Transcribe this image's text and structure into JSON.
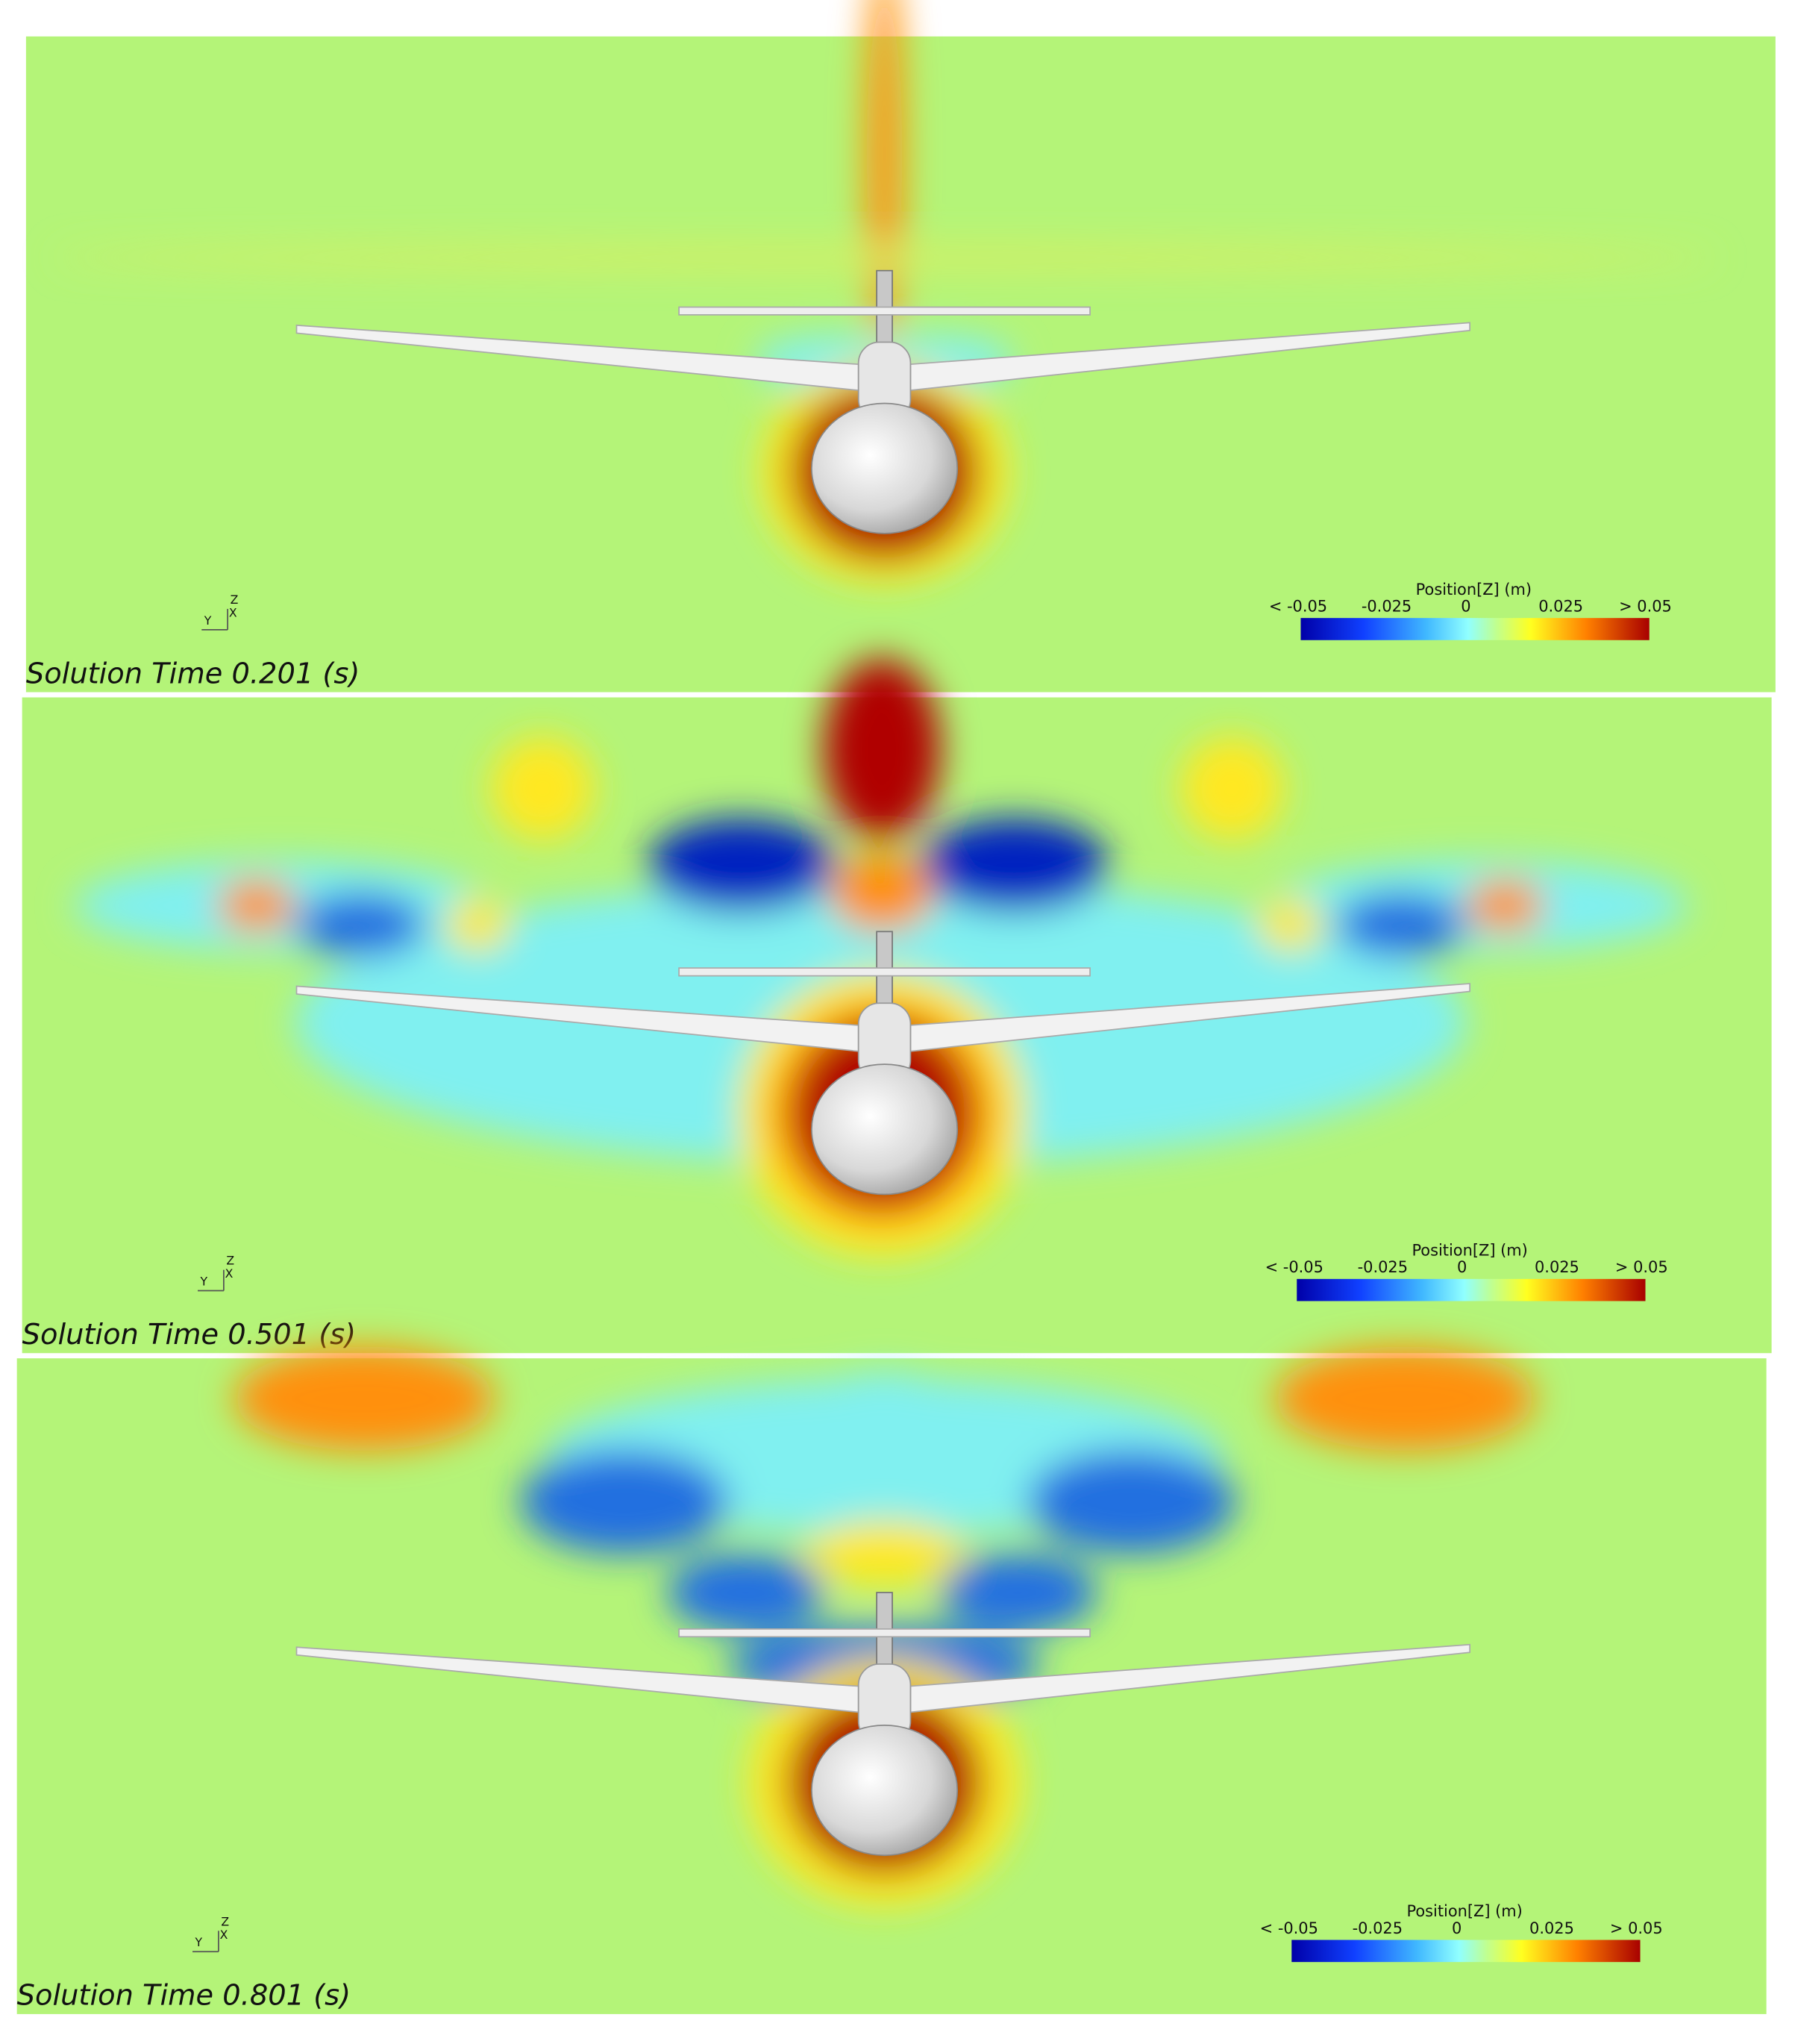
{
  "panels": [
    {
      "caption": "Solution Time 0.201 (s)",
      "legend": {
        "title": "Position[Z] (m)",
        "labels": [
          "< -0.05",
          "-0.025",
          "0",
          "0.025",
          "> 0.05"
        ]
      },
      "axes": [
        "Z",
        "X",
        "Y"
      ]
    },
    {
      "caption": "Solution Time 0.501 (s)",
      "legend": {
        "title": "Position[Z] (m)",
        "labels": [
          "< -0.05",
          "-0.025",
          "0",
          "0.025",
          "> 0.05"
        ]
      },
      "axes": [
        "Z",
        "X",
        "Y"
      ]
    },
    {
      "caption": "Solution Time 0.801 (s)",
      "legend": {
        "title": "Position[Z] (m)",
        "labels": [
          "< -0.05",
          "-0.025",
          "0",
          "0.025",
          "> 0.05"
        ]
      },
      "axes": [
        "Z",
        "X",
        "Y"
      ]
    }
  ]
}
